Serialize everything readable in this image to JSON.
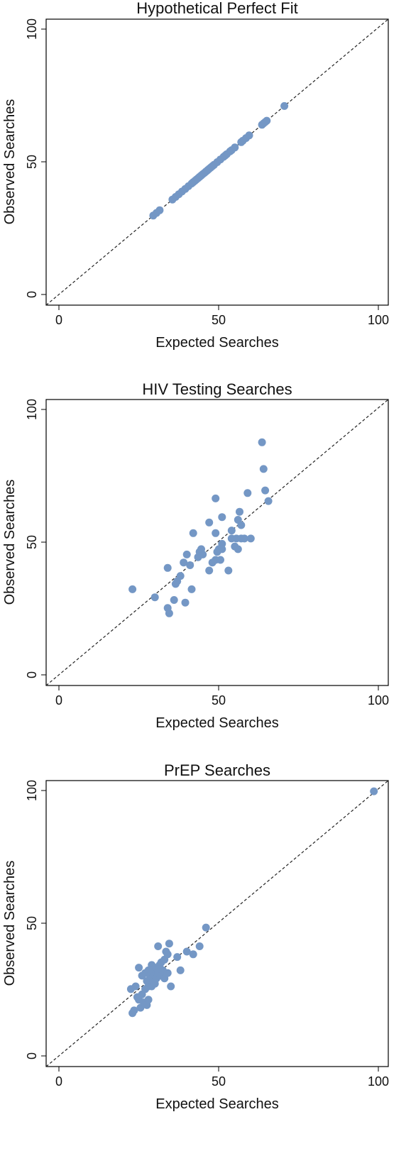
{
  "marker_color": "#7497c5",
  "chart_data": [
    {
      "type": "scatter",
      "title": "Hypothetical Perfect Fit",
      "xlabel": "Expected Searches",
      "ylabel": "Observed Searches",
      "xlim": [
        -3,
        104
      ],
      "ylim": [
        -3,
        104
      ],
      "xticks": [
        0,
        50,
        100
      ],
      "yticks": [
        0,
        50,
        100
      ],
      "reference_line": "y = x (dashed)",
      "grid": false,
      "x": [
        30.5,
        31.5,
        32.5,
        36.5,
        37.5,
        38.5,
        39.5,
        40.5,
        41.5,
        42.5,
        43.0,
        43.5,
        44.0,
        44.5,
        45.0,
        45.5,
        46.0,
        46.5,
        47.0,
        47.5,
        48.0,
        48.5,
        49.0,
        49.5,
        50.5,
        51.5,
        52.5,
        53.0,
        53.5,
        54.5,
        55.0,
        56.0,
        58.0,
        58.5,
        59.5,
        60.5,
        64.5,
        65.0,
        65.5,
        66.0,
        71.5
      ],
      "y": [
        30.5,
        31.5,
        32.5,
        36.5,
        37.5,
        38.5,
        39.5,
        40.5,
        41.5,
        42.5,
        43.0,
        43.5,
        44.0,
        44.5,
        45.0,
        45.5,
        46.0,
        46.5,
        47.0,
        47.5,
        48.0,
        48.5,
        49.0,
        49.5,
        50.5,
        51.5,
        52.5,
        53.0,
        53.5,
        54.5,
        55.0,
        56.0,
        58.0,
        58.5,
        59.5,
        60.5,
        64.5,
        65.0,
        65.5,
        66.0,
        71.5
      ]
    },
    {
      "type": "scatter",
      "title": "HIV Testing Searches",
      "xlabel": "Expected Searches",
      "ylabel": "Observed Searches",
      "xlim": [
        -3,
        104
      ],
      "ylim": [
        -3,
        104
      ],
      "xticks": [
        0,
        50,
        100
      ],
      "yticks": [
        0,
        50,
        100
      ],
      "reference_line": "y = x (dashed)",
      "grid": false,
      "x": [
        24,
        31,
        35,
        35.5,
        35,
        37,
        37.5,
        38,
        39,
        40,
        40.5,
        41,
        42,
        42.5,
        43,
        44.5,
        45,
        45.5,
        46,
        48,
        48,
        49,
        50,
        50,
        50,
        50.5,
        51,
        51.5,
        52,
        52,
        52,
        54,
        55,
        55,
        56,
        56.5,
        57,
        57,
        57.5,
        58,
        58,
        59,
        60,
        61,
        64.5,
        65,
        65.5,
        66.5
      ],
      "y": [
        33,
        30,
        26,
        24,
        41,
        29,
        35,
        36,
        38,
        43,
        28,
        46,
        42,
        33,
        54,
        45,
        47,
        48,
        46,
        58,
        40,
        43,
        67,
        54,
        44,
        47,
        48,
        44,
        50,
        60,
        48,
        40,
        52,
        55,
        49,
        52,
        59,
        48,
        62,
        52,
        57,
        52,
        69,
        52,
        88,
        78,
        70,
        66
      ]
    },
    {
      "type": "scatter",
      "title": "PrEP Searches",
      "xlabel": "Expected Searches",
      "ylabel": "Observed Searches",
      "xlim": [
        -3,
        104
      ],
      "ylim": [
        -3,
        104
      ],
      "xticks": [
        0,
        50,
        100
      ],
      "yticks": [
        0,
        50,
        100
      ],
      "reference_line": "y = x (dashed)",
      "grid": false,
      "x": [
        23.5,
        24,
        24.5,
        25,
        25.5,
        26,
        26,
        26.5,
        27,
        27,
        27.5,
        28,
        28,
        28.5,
        28.5,
        29,
        29,
        29,
        29.5,
        29.5,
        30,
        30,
        30,
        30.5,
        30.5,
        31,
        31,
        31.5,
        31.5,
        32,
        32,
        32.5,
        33,
        33,
        33.5,
        34,
        34,
        34.5,
        35,
        35,
        35.5,
        36,
        38,
        39,
        41,
        43,
        45,
        47,
        99.5
      ],
      "y": [
        26,
        17,
        18,
        27,
        23,
        22,
        34,
        19,
        24,
        31,
        21,
        26,
        32,
        20,
        29,
        22,
        27,
        33,
        28,
        31,
        30,
        35,
        27,
        29,
        33,
        31,
        28,
        34,
        30,
        32,
        42,
        35,
        31,
        36,
        33,
        30,
        37,
        40,
        39,
        32,
        43,
        27,
        38,
        33,
        40,
        39,
        42,
        49,
        100
      ]
    }
  ]
}
